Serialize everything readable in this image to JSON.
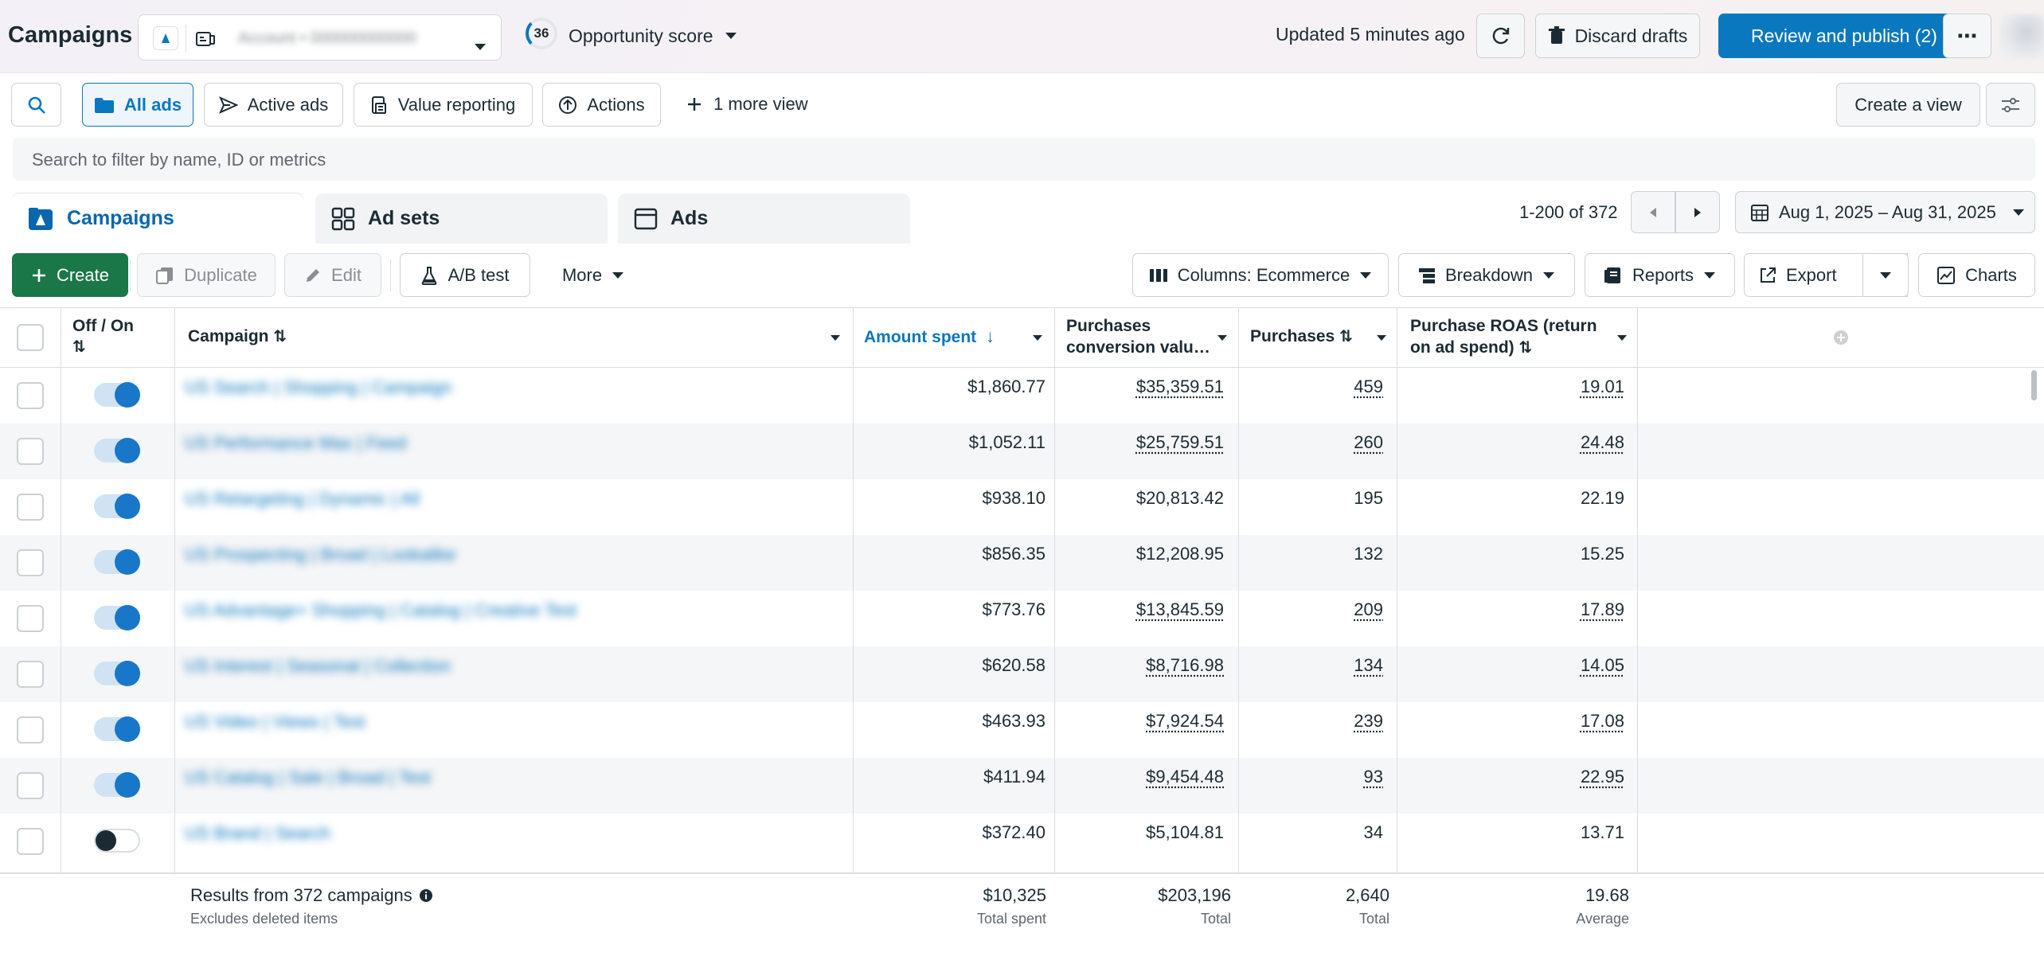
{
  "header": {
    "title": "Campaigns",
    "account_name": "Account • 000000000000",
    "score": "36",
    "score_label": "Opportunity score",
    "updated": "Updated 5 minutes ago",
    "discard": "Discard drafts",
    "publish": "Review and publish (2)",
    "more_icon": "⋯"
  },
  "views": {
    "all_ads": "All ads",
    "active_ads": "Active ads",
    "value_reporting": "Value reporting",
    "actions": "Actions",
    "more_view": "1 more view",
    "create_view": "Create a view"
  },
  "search": {
    "placeholder": "Search to filter by name, ID or metrics"
  },
  "tabs": [
    {
      "label": "Campaigns"
    },
    {
      "label": "Ad sets"
    },
    {
      "label": "Ads"
    }
  ],
  "pagination": "1-200 of 372",
  "date_range": "Aug 1, 2025 – Aug 31, 2025",
  "toolbar": {
    "create": "Create",
    "duplicate": "Duplicate",
    "edit": "Edit",
    "ab_test": "A/B test",
    "more": "More",
    "columns": "Columns: Ecommerce",
    "breakdown": "Breakdown",
    "reports": "Reports",
    "export": "Export",
    "charts": "Charts"
  },
  "columns": {
    "off_on": "Off / On",
    "campaign": "Campaign",
    "amount_spent": "Amount spent",
    "purchases_value_1": "Purchases",
    "purchases_value_2": "conversion valu…",
    "purchases": "Purchases",
    "roas_1": "Purchase ROAS (return",
    "roas_2": "on ad spend)"
  },
  "rows": [
    {
      "on": true,
      "name": "US Search | Shopping | Campaign",
      "spent": "$1,860.77",
      "value": "$35,359.51",
      "purchases": "459",
      "roas": "19.01",
      "u": true
    },
    {
      "on": true,
      "name": "US Performance Max | Feed",
      "spent": "$1,052.11",
      "value": "$25,759.51",
      "purchases": "260",
      "roas": "24.48",
      "u": true
    },
    {
      "on": true,
      "name": "US Retargeting | Dynamic | All",
      "spent": "$938.10",
      "value": "$20,813.42",
      "purchases": "195",
      "roas": "22.19",
      "u": false
    },
    {
      "on": true,
      "name": "US Prospecting | Broad | Lookalike",
      "spent": "$856.35",
      "value": "$12,208.95",
      "purchases": "132",
      "roas": "15.25",
      "u": false
    },
    {
      "on": true,
      "name": "US Advantage+ Shopping | Catalog | Creative Test",
      "spent": "$773.76",
      "value": "$13,845.59",
      "purchases": "209",
      "roas": "17.89",
      "u": true
    },
    {
      "on": true,
      "name": "US Interest | Seasonal | Collection",
      "spent": "$620.58",
      "value": "$8,716.98",
      "purchases": "134",
      "roas": "14.05",
      "u": true
    },
    {
      "on": true,
      "name": "US Video | Views | Test",
      "spent": "$463.93",
      "value": "$7,924.54",
      "purchases": "239",
      "roas": "17.08",
      "u": true
    },
    {
      "on": true,
      "name": "US Catalog | Sale | Broad | Test",
      "spent": "$411.94",
      "value": "$9,454.48",
      "purchases": "93",
      "roas": "22.95",
      "u": true
    },
    {
      "on": false,
      "name": "US Brand | Search",
      "spent": "$372.40",
      "value": "$5,104.81",
      "purchases": "34",
      "roas": "13.71",
      "u": false
    }
  ],
  "footer": {
    "results": "Results from 372 campaigns",
    "excludes": "Excludes deleted items",
    "spent": "$10,325",
    "spent_label": "Total spent",
    "value": "$203,196",
    "value_label": "Total",
    "purchases": "2,640",
    "purchases_label": "Total",
    "roas": "19.68",
    "roas_label": "Average"
  },
  "colors": {
    "accent": "#0a78be",
    "create": "#1a7748"
  }
}
